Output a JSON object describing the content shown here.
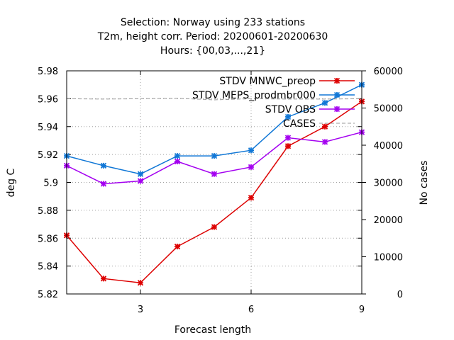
{
  "chart_data": {
    "type": "line",
    "title_lines": [
      "Selection: Norway using   233 stations",
      "T2m, height corr.   Period: 20200601-20200630",
      "Hours: {00,03,...,21}"
    ],
    "xlabel": "Forecast length",
    "ylabel": "deg C",
    "y2label": "No cases",
    "xlim": [
      1,
      9
    ],
    "ylim": [
      5.82,
      5.98
    ],
    "y2lim": [
      0,
      60000
    ],
    "xticks": [
      3,
      6,
      9
    ],
    "yticks": [
      5.82,
      5.84,
      5.86,
      5.88,
      5.9,
      5.92,
      5.94,
      5.96,
      5.98
    ],
    "ytick_labels": [
      "5.82",
      "5.84",
      "5.86",
      "5.88",
      "5.9",
      "5.92",
      "5.94",
      "5.96",
      "5.98"
    ],
    "y2ticks": [
      0,
      10000,
      20000,
      30000,
      40000,
      50000,
      60000
    ],
    "grid": true,
    "legend_position": "top-right",
    "x": [
      1,
      2,
      3,
      4,
      5,
      6,
      7,
      8,
      9
    ],
    "series": [
      {
        "name": "STDV MNWC_preop",
        "color": "#dd0000",
        "axis": "y1",
        "values": [
          5.862,
          5.831,
          5.828,
          5.854,
          5.868,
          5.889,
          5.926,
          5.94,
          5.958
        ]
      },
      {
        "name": "STDV MEPS_prodmbr000",
        "color": "#1077d6",
        "axis": "y1",
        "values": [
          5.919,
          5.912,
          5.906,
          5.919,
          5.919,
          5.923,
          5.947,
          5.957,
          5.97
        ]
      },
      {
        "name": "STDV OBS",
        "color": "#a400f0",
        "axis": "y1",
        "values": [
          5.912,
          5.899,
          5.901,
          5.915,
          5.906,
          5.911,
          5.932,
          5.929,
          5.936
        ]
      },
      {
        "name": "CASES",
        "color": "#999999",
        "axis": "y2",
        "dashed": true,
        "values": [
          52500,
          52400,
          52500,
          52600,
          52200,
          52500,
          52400,
          52400,
          52500
        ]
      }
    ]
  }
}
